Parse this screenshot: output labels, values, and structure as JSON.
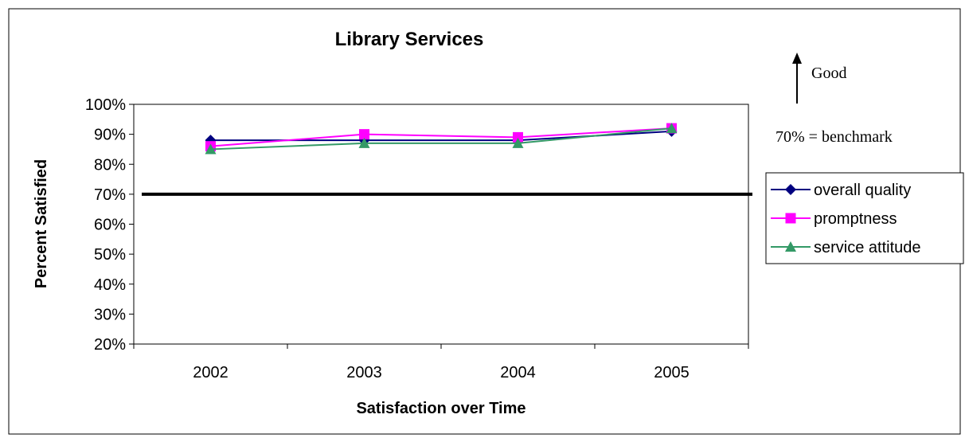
{
  "chart_data": {
    "type": "line",
    "title": "Library Services",
    "xlabel": "Satisfaction over Time",
    "ylabel": "Percent Satisfied",
    "categories": [
      "2002",
      "2003",
      "2004",
      "2005"
    ],
    "ylim": [
      20,
      100
    ],
    "ytick_step": 10,
    "ytick_suffix": "%",
    "grid": false,
    "legend_position": "right",
    "benchmark": {
      "value": 70,
      "label": "70% = benchmark",
      "color": "#000000"
    },
    "direction_note": "Good",
    "series": [
      {
        "name": "overall quality",
        "values": [
          88,
          88,
          88,
          91
        ],
        "color": "#000080",
        "marker": "diamond"
      },
      {
        "name": "promptness",
        "values": [
          86,
          90,
          89,
          92
        ],
        "color": "#ff00ff",
        "marker": "square"
      },
      {
        "name": "service attitude",
        "values": [
          85,
          87,
          87,
          92
        ],
        "color": "#339966",
        "marker": "triangle"
      }
    ]
  }
}
